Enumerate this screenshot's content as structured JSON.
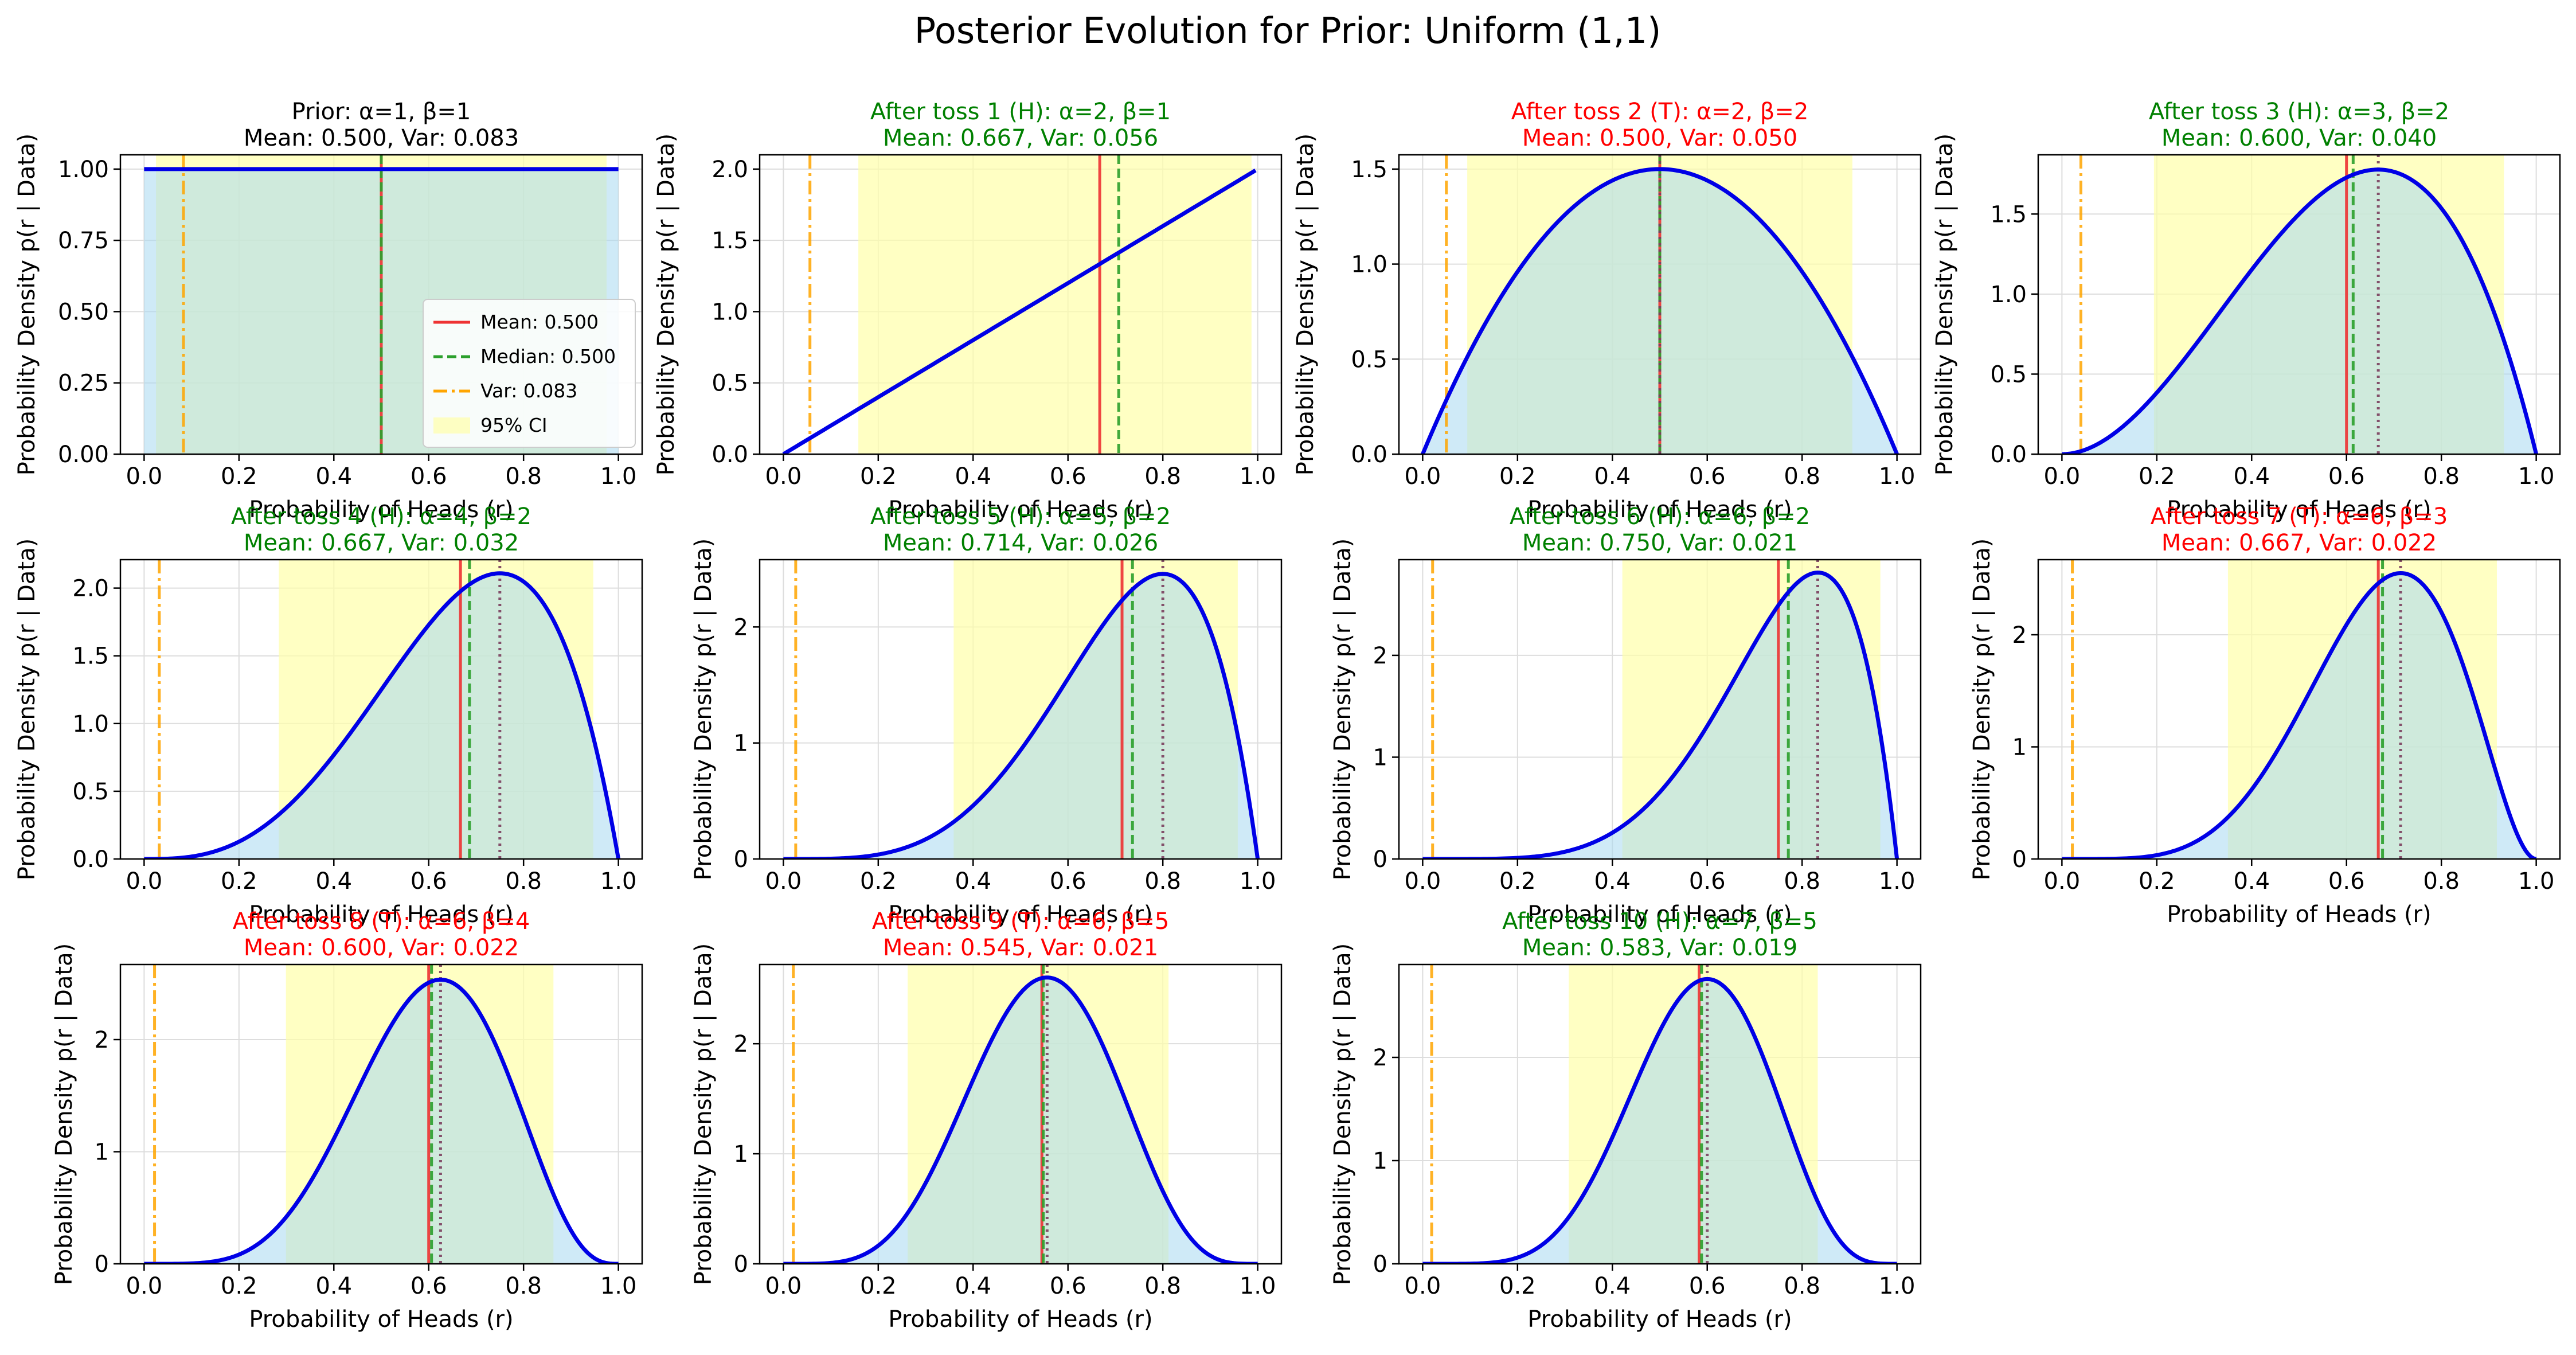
{
  "suptitle": "Posterior Evolution for Prior: Uniform (1,1)",
  "colors": {
    "density": "#0000e6",
    "mean": "#ee3333",
    "median": "#2ca02c",
    "var": "#ffa500",
    "mode": "#7b3f5e",
    "ci_fill": "#ffffaa",
    "area_fill": "#a8d8f0",
    "title_prior": "#000000",
    "title_heads": "#008000",
    "title_tails": "#ff0000",
    "grid": "#dddddd"
  },
  "chart_data": [
    {
      "type": "line",
      "title_line1": "Prior: α=1, β=1",
      "title_line2": "Mean: 0.500, Var: 0.083",
      "outcome": "prior",
      "alpha": 1,
      "beta": 1,
      "mean": 0.5,
      "median": 0.5,
      "variance": 0.083,
      "mode": null,
      "ci": [
        0.025,
        0.975
      ],
      "xlabel": "Probability of Heads (r)",
      "ylabel": "Probability Density p(r | Data)",
      "xlim": [
        -0.05,
        1.05
      ],
      "ylim": [
        0,
        1.05
      ],
      "xticks": [
        0.0,
        0.2,
        0.4,
        0.6,
        0.8,
        1.0
      ],
      "xtick_labels": [
        "0.0",
        "0.2",
        "0.4",
        "0.6",
        "0.8",
        "1.0"
      ],
      "yticks": [
        0,
        0.25,
        0.5,
        0.75,
        1.0
      ],
      "ytick_labels": [
        "0.00",
        "0.25",
        "0.50",
        "0.75",
        "1.00"
      ],
      "grid": true
    },
    {
      "type": "line",
      "title_line1": "After toss 1 (H): α=2, β=1",
      "title_line2": "Mean: 0.667, Var: 0.056",
      "outcome": "H",
      "alpha": 2,
      "beta": 1,
      "mean": 0.667,
      "median": 0.707,
      "variance": 0.056,
      "mode": null,
      "ci": [
        0.158,
        0.987
      ],
      "xlabel": "Probability of Heads (r)",
      "ylabel": "Probability Density p(r | Data)",
      "xlim": [
        -0.05,
        1.05
      ],
      "ylim": [
        0,
        2.1
      ],
      "xticks": [
        0.0,
        0.2,
        0.4,
        0.6,
        0.8,
        1.0
      ],
      "xtick_labels": [
        "0.0",
        "0.2",
        "0.4",
        "0.6",
        "0.8",
        "1.0"
      ],
      "yticks": [
        0,
        0.5,
        1.0,
        1.5,
        2.0
      ],
      "ytick_labels": [
        "0.0",
        "0.5",
        "1.0",
        "1.5",
        "2.0"
      ],
      "grid": true
    },
    {
      "type": "line",
      "title_line1": "After toss 2 (T): α=2, β=2",
      "title_line2": "Mean: 0.500, Var: 0.050",
      "outcome": "T",
      "alpha": 2,
      "beta": 2,
      "mean": 0.5,
      "median": 0.5,
      "variance": 0.05,
      "mode": 0.5,
      "ci": [
        0.094,
        0.906
      ],
      "xlabel": "Probability of Heads (r)",
      "ylabel": "Probability Density p(r | Data)",
      "xlim": [
        -0.05,
        1.05
      ],
      "ylim": [
        0,
        1.575
      ],
      "xticks": [
        0.0,
        0.2,
        0.4,
        0.6,
        0.8,
        1.0
      ],
      "xtick_labels": [
        "0.0",
        "0.2",
        "0.4",
        "0.6",
        "0.8",
        "1.0"
      ],
      "yticks": [
        0,
        0.5,
        1.0,
        1.5
      ],
      "ytick_labels": [
        "0.0",
        "0.5",
        "1.0",
        "1.5"
      ],
      "grid": true
    },
    {
      "type": "line",
      "title_line1": "After toss 3 (H): α=3, β=2",
      "title_line2": "Mean: 0.600, Var: 0.040",
      "outcome": "H",
      "alpha": 3,
      "beta": 2,
      "mean": 0.6,
      "median": 0.614,
      "variance": 0.04,
      "mode": 0.667,
      "ci": [
        0.194,
        0.932
      ],
      "xlabel": "Probability of Heads (r)",
      "ylabel": "Probability Density p(r | Data)",
      "xlim": [
        -0.05,
        1.05
      ],
      "ylim": [
        0,
        1.87
      ],
      "xticks": [
        0.0,
        0.2,
        0.4,
        0.6,
        0.8,
        1.0
      ],
      "xtick_labels": [
        "0.0",
        "0.2",
        "0.4",
        "0.6",
        "0.8",
        "1.0"
      ],
      "yticks": [
        0,
        0.5,
        1.0,
        1.5
      ],
      "ytick_labels": [
        "0.0",
        "0.5",
        "1.0",
        "1.5"
      ],
      "grid": true
    },
    {
      "type": "line",
      "title_line1": "After toss 4 (H): α=4, β=2",
      "title_line2": "Mean: 0.667, Var: 0.032",
      "outcome": "H",
      "alpha": 4,
      "beta": 2,
      "mean": 0.667,
      "median": 0.686,
      "variance": 0.032,
      "mode": 0.75,
      "ci": [
        0.284,
        0.947
      ],
      "xlabel": "Probability of Heads (r)",
      "ylabel": "Probability Density p(r | Data)",
      "xlim": [
        -0.05,
        1.05
      ],
      "ylim": [
        0,
        2.21
      ],
      "xticks": [
        0.0,
        0.2,
        0.4,
        0.6,
        0.8,
        1.0
      ],
      "xtick_labels": [
        "0.0",
        "0.2",
        "0.4",
        "0.6",
        "0.8",
        "1.0"
      ],
      "yticks": [
        0,
        0.5,
        1.0,
        1.5,
        2.0
      ],
      "ytick_labels": [
        "0.0",
        "0.5",
        "1.0",
        "1.5",
        "2.0"
      ],
      "grid": true
    },
    {
      "type": "line",
      "title_line1": "After toss 5 (H): α=5, β=2",
      "title_line2": "Mean: 0.714, Var: 0.026",
      "outcome": "H",
      "alpha": 5,
      "beta": 2,
      "mean": 0.714,
      "median": 0.736,
      "variance": 0.026,
      "mode": 0.8,
      "ci": [
        0.359,
        0.958
      ],
      "xlabel": "Probability of Heads (r)",
      "ylabel": "Probability Density p(r | Data)",
      "xlim": [
        -0.05,
        1.05
      ],
      "ylim": [
        0,
        2.58
      ],
      "xticks": [
        0.0,
        0.2,
        0.4,
        0.6,
        0.8,
        1.0
      ],
      "xtick_labels": [
        "0.0",
        "0.2",
        "0.4",
        "0.6",
        "0.8",
        "1.0"
      ],
      "yticks": [
        0,
        1,
        2
      ],
      "ytick_labels": [
        "0",
        "1",
        "2"
      ],
      "grid": true
    },
    {
      "type": "line",
      "title_line1": "After toss 6 (H): α=6, β=2",
      "title_line2": "Mean: 0.750, Var: 0.021",
      "outcome": "H",
      "alpha": 6,
      "beta": 2,
      "mean": 0.75,
      "median": 0.771,
      "variance": 0.021,
      "mode": 0.833,
      "ci": [
        0.421,
        0.965
      ],
      "xlabel": "Probability of Heads (r)",
      "ylabel": "Probability Density p(r | Data)",
      "xlim": [
        -0.05,
        1.05
      ],
      "ylim": [
        0,
        2.94
      ],
      "xticks": [
        0.0,
        0.2,
        0.4,
        0.6,
        0.8,
        1.0
      ],
      "xtick_labels": [
        "0.0",
        "0.2",
        "0.4",
        "0.6",
        "0.8",
        "1.0"
      ],
      "yticks": [
        0,
        1,
        2
      ],
      "ytick_labels": [
        "0",
        "1",
        "2"
      ],
      "grid": true
    },
    {
      "type": "line",
      "title_line1": "After toss 7 (T): α=6, β=3",
      "title_line2": "Mean: 0.667, Var: 0.022",
      "outcome": "T",
      "alpha": 6,
      "beta": 3,
      "mean": 0.667,
      "median": 0.676,
      "variance": 0.022,
      "mode": 0.714,
      "ci": [
        0.35,
        0.917
      ],
      "xlabel": "Probability of Heads (r)",
      "ylabel": "Probability Density p(r | Data)",
      "xlim": [
        -0.05,
        1.05
      ],
      "ylim": [
        0,
        2.67
      ],
      "xticks": [
        0.0,
        0.2,
        0.4,
        0.6,
        0.8,
        1.0
      ],
      "xtick_labels": [
        "0.0",
        "0.2",
        "0.4",
        "0.6",
        "0.8",
        "1.0"
      ],
      "yticks": [
        0,
        1,
        2
      ],
      "ytick_labels": [
        "0",
        "1",
        "2"
      ],
      "grid": true
    },
    {
      "type": "line",
      "title_line1": "After toss 8 (T): α=6, β=4",
      "title_line2": "Mean: 0.600, Var: 0.022",
      "outcome": "T",
      "alpha": 6,
      "beta": 4,
      "mean": 0.6,
      "median": 0.606,
      "variance": 0.022,
      "mode": 0.625,
      "ci": [
        0.299,
        0.863
      ],
      "xlabel": "Probability of Heads (r)",
      "ylabel": "Probability Density p(r | Data)",
      "xlim": [
        -0.05,
        1.05
      ],
      "ylim": [
        0,
        2.67
      ],
      "xticks": [
        0.0,
        0.2,
        0.4,
        0.6,
        0.8,
        1.0
      ],
      "xtick_labels": [
        "0.0",
        "0.2",
        "0.4",
        "0.6",
        "0.8",
        "1.0"
      ],
      "yticks": [
        0,
        1,
        2
      ],
      "ytick_labels": [
        "0",
        "1",
        "2"
      ],
      "grid": true
    },
    {
      "type": "line",
      "title_line1": "After toss 9 (T): α=6, β=5",
      "title_line2": "Mean: 0.545, Var: 0.021",
      "outcome": "T",
      "alpha": 6,
      "beta": 5,
      "mean": 0.545,
      "median": 0.548,
      "variance": 0.021,
      "mode": 0.556,
      "ci": [
        0.262,
        0.812
      ],
      "xlabel": "Probability of Heads (r)",
      "ylabel": "Probability Density p(r | Data)",
      "xlim": [
        -0.05,
        1.05
      ],
      "ylim": [
        0,
        2.72
      ],
      "xticks": [
        0.0,
        0.2,
        0.4,
        0.6,
        0.8,
        1.0
      ],
      "xtick_labels": [
        "0.0",
        "0.2",
        "0.4",
        "0.6",
        "0.8",
        "1.0"
      ],
      "yticks": [
        0,
        1,
        2
      ],
      "ytick_labels": [
        "0",
        "1",
        "2"
      ],
      "grid": true
    },
    {
      "type": "line",
      "title_line1": "After toss 10 (H): α=7, β=5",
      "title_line2": "Mean: 0.583, Var: 0.019",
      "outcome": "H",
      "alpha": 7,
      "beta": 5,
      "mean": 0.583,
      "median": 0.588,
      "variance": 0.019,
      "mode": 0.6,
      "ci": [
        0.308,
        0.833
      ],
      "xlabel": "Probability of Heads (r)",
      "ylabel": "Probability Density p(r | Data)",
      "xlim": [
        -0.05,
        1.05
      ],
      "ylim": [
        0,
        2.9
      ],
      "xticks": [
        0.0,
        0.2,
        0.4,
        0.6,
        0.8,
        1.0
      ],
      "xtick_labels": [
        "0.0",
        "0.2",
        "0.4",
        "0.6",
        "0.8",
        "1.0"
      ],
      "yticks": [
        0,
        1,
        2
      ],
      "ytick_labels": [
        "0",
        "1",
        "2"
      ],
      "grid": true
    }
  ],
  "legend": {
    "placement": "lower-right",
    "entries": [
      "Mean: 0.500",
      "Median: 0.500",
      "Var: 0.083",
      "95% CI"
    ]
  }
}
